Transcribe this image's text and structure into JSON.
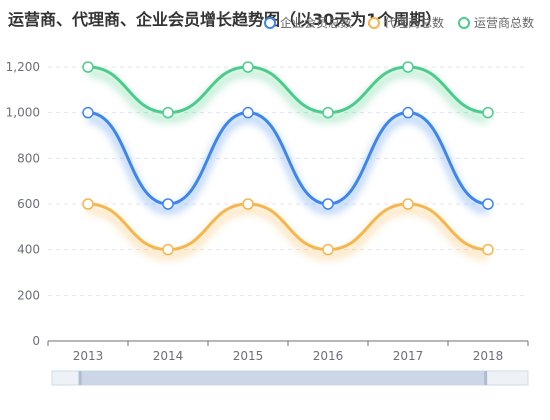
{
  "title": "运营商、代理商、企业会员增长趋势图（以30天为1个周期）",
  "chart_data": {
    "type": "line",
    "smooth": true,
    "categories": [
      "2013",
      "2014",
      "2015",
      "2016",
      "2017",
      "2018"
    ],
    "ylim": [
      0,
      1200
    ],
    "yticks": [
      "0",
      "200",
      "400",
      "600",
      "800",
      "1,000",
      "1,200"
    ],
    "grid": true,
    "legend_position": "top-right",
    "series": [
      {
        "name": "企业会员总数",
        "color": "#3f86ea",
        "values": [
          1000,
          600,
          1000,
          600,
          1000,
          600
        ]
      },
      {
        "name": "代理商总数",
        "color": "#f5b64d",
        "values": [
          600,
          400,
          600,
          400,
          600,
          400
        ]
      },
      {
        "name": "运营商总数",
        "color": "#4ccc8a",
        "values": [
          1200,
          1000,
          1200,
          1000,
          1200,
          1000
        ]
      }
    ],
    "datazoom": {
      "start": 0.06,
      "end": 0.91
    }
  }
}
